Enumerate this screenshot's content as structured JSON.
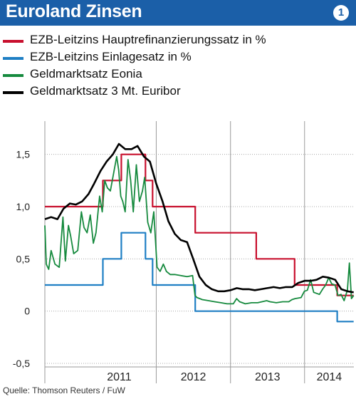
{
  "header": {
    "title": "Euroland Zinsen",
    "badge": "1"
  },
  "legend": [
    {
      "label": "EZB-Leitzins Hauptrefinanzierungssatz in %",
      "color": "#c8102e"
    },
    {
      "label": "EZB-Leitzins Einlagesatz in %",
      "color": "#1f7fc4"
    },
    {
      "label": "Geldmarktsatz Eonia",
      "color": "#168a3e"
    },
    {
      "label": "Geldmarktsatz 3 Mt. Euribor",
      "color": "#000000"
    }
  ],
  "source": "Quelle: Thomson Reuters / FuW",
  "chart_data": {
    "type": "line",
    "title": "Euroland Zinsen",
    "ylim": [
      -0.5,
      1.75
    ],
    "yticks": [
      {
        "value": 1.5,
        "label": "1,5"
      },
      {
        "value": 1.0,
        "label": "1,0"
      },
      {
        "value": 0.5,
        "label": "0,5"
      },
      {
        "value": 0.0,
        "label": "0"
      },
      {
        "value": -0.5,
        "label": "-0,5"
      }
    ],
    "xlim": [
      "2010-07",
      "2014-09"
    ],
    "year_bands": [
      {
        "label": "2011",
        "start": "2011-01",
        "end": "2012-01"
      },
      {
        "label": "2012",
        "start": "2012-01",
        "end": "2013-01"
      },
      {
        "label": "2013",
        "start": "2013-01",
        "end": "2014-01"
      },
      {
        "label": "2014",
        "start": "2014-01",
        "end": "2014-09"
      }
    ],
    "grid": {
      "horizontal": true,
      "vertical": "year boundaries"
    },
    "series": [
      {
        "name": "EZB-Leitzins Hauptrefinanzierungssatz in %",
        "color": "#c8102e",
        "step": true,
        "x": [
          "2010-07-01",
          "2011-04-13",
          "2011-07-13",
          "2011-11-09",
          "2011-12-14",
          "2012-07-11",
          "2013-05-08",
          "2013-11-13",
          "2014-06-11",
          "2014-08-31"
        ],
        "y": [
          1.0,
          1.25,
          1.5,
          1.25,
          1.0,
          0.75,
          0.5,
          0.25,
          0.15,
          0.15
        ]
      },
      {
        "name": "EZB-Leitzins Einlagesatz in %",
        "color": "#1f7fc4",
        "step": true,
        "x": [
          "2010-07-01",
          "2011-04-13",
          "2011-07-13",
          "2011-11-09",
          "2011-12-14",
          "2012-07-11",
          "2014-06-11",
          "2014-08-31"
        ],
        "y": [
          0.25,
          0.5,
          0.75,
          0.5,
          0.25,
          0.0,
          -0.1,
          -0.1
        ]
      },
      {
        "name": "Geldmarktsatz Eonia",
        "color": "#168a3e",
        "step": false,
        "x": [
          "2010-07-01",
          "2010-07-08",
          "2010-07-20",
          "2010-08-01",
          "2010-08-20",
          "2010-09-10",
          "2010-09-28",
          "2010-10-10",
          "2010-10-25",
          "2010-11-05",
          "2010-11-20",
          "2010-12-10",
          "2010-12-28",
          "2011-01-10",
          "2011-01-25",
          "2011-02-10",
          "2011-02-25",
          "2011-03-10",
          "2011-03-28",
          "2011-04-10",
          "2011-04-22",
          "2011-05-05",
          "2011-05-20",
          "2011-06-05",
          "2011-06-20",
          "2011-06-30",
          "2011-07-10",
          "2011-07-20",
          "2011-08-01",
          "2011-08-15",
          "2011-08-28",
          "2011-09-10",
          "2011-09-25",
          "2011-10-10",
          "2011-10-25",
          "2011-11-05",
          "2011-11-20",
          "2011-12-05",
          "2011-12-20",
          "2012-01-05",
          "2012-01-20",
          "2012-02-05",
          "2012-02-20",
          "2012-03-10",
          "2012-04-01",
          "2012-05-01",
          "2012-06-01",
          "2012-06-28",
          "2012-07-10",
          "2012-07-20",
          "2012-08-15",
          "2012-09-15",
          "2012-10-15",
          "2012-11-15",
          "2012-12-15",
          "2013-01-15",
          "2013-01-31",
          "2013-02-15",
          "2013-03-15",
          "2013-04-15",
          "2013-05-15",
          "2013-06-28",
          "2013-07-15",
          "2013-08-15",
          "2013-09-15",
          "2013-10-15",
          "2013-10-31",
          "2013-11-15",
          "2013-12-15",
          "2013-12-31",
          "2014-01-15",
          "2014-01-31",
          "2014-02-15",
          "2014-03-15",
          "2014-03-31",
          "2014-04-15",
          "2014-04-30",
          "2014-05-15",
          "2014-05-31",
          "2014-06-15",
          "2014-06-30",
          "2014-07-15",
          "2014-07-31",
          "2014-08-10",
          "2014-08-20",
          "2014-08-31"
        ],
        "y": [
          0.82,
          0.45,
          0.4,
          0.58,
          0.45,
          0.42,
          0.9,
          0.48,
          0.82,
          0.72,
          0.55,
          0.58,
          0.95,
          0.8,
          0.75,
          0.92,
          0.65,
          0.75,
          1.1,
          0.95,
          1.25,
          1.18,
          1.15,
          1.32,
          1.48,
          1.35,
          1.1,
          1.05,
          0.95,
          1.45,
          1.25,
          0.95,
          1.4,
          1.05,
          1.15,
          1.28,
          0.85,
          0.75,
          0.95,
          0.42,
          0.38,
          0.45,
          0.38,
          0.35,
          0.35,
          0.34,
          0.33,
          0.34,
          0.15,
          0.13,
          0.11,
          0.1,
          0.09,
          0.08,
          0.07,
          0.07,
          0.12,
          0.09,
          0.07,
          0.08,
          0.08,
          0.1,
          0.09,
          0.08,
          0.09,
          0.09,
          0.11,
          0.12,
          0.13,
          0.19,
          0.2,
          0.3,
          0.18,
          0.16,
          0.21,
          0.25,
          0.32,
          0.26,
          0.25,
          0.15,
          0.16,
          0.1,
          0.2,
          0.46,
          0.12,
          0.15
        ]
      },
      {
        "name": "Geldmarktsatz 3 Mt. Euribor",
        "color": "#000000",
        "step": false,
        "x": [
          "2010-07-01",
          "2010-08-01",
          "2010-09-01",
          "2010-10-01",
          "2010-11-01",
          "2010-12-01",
          "2011-01-01",
          "2011-02-01",
          "2011-03-01",
          "2011-04-01",
          "2011-05-01",
          "2011-06-01",
          "2011-07-01",
          "2011-08-01",
          "2011-09-01",
          "2011-10-01",
          "2011-11-01",
          "2011-12-01",
          "2012-01-01",
          "2012-02-01",
          "2012-03-01",
          "2012-04-01",
          "2012-05-01",
          "2012-06-01",
          "2012-07-01",
          "2012-08-01",
          "2012-09-01",
          "2012-10-01",
          "2012-11-01",
          "2012-12-01",
          "2013-01-01",
          "2013-02-01",
          "2013-03-01",
          "2013-04-01",
          "2013-05-01",
          "2013-06-01",
          "2013-07-01",
          "2013-08-01",
          "2013-09-01",
          "2013-10-01",
          "2013-11-01",
          "2013-12-01",
          "2014-01-01",
          "2014-02-01",
          "2014-03-01",
          "2014-04-01",
          "2014-05-01",
          "2014-06-01",
          "2014-07-01",
          "2014-08-01",
          "2014-08-31"
        ],
        "y": [
          0.88,
          0.9,
          0.88,
          0.98,
          1.03,
          1.02,
          1.05,
          1.12,
          1.22,
          1.34,
          1.43,
          1.5,
          1.6,
          1.55,
          1.55,
          1.58,
          1.48,
          1.43,
          1.22,
          1.05,
          0.86,
          0.74,
          0.68,
          0.66,
          0.5,
          0.33,
          0.25,
          0.21,
          0.19,
          0.19,
          0.2,
          0.22,
          0.21,
          0.21,
          0.2,
          0.21,
          0.22,
          0.23,
          0.22,
          0.23,
          0.23,
          0.27,
          0.29,
          0.29,
          0.3,
          0.33,
          0.32,
          0.3,
          0.21,
          0.19,
          0.18
        ]
      }
    ]
  }
}
